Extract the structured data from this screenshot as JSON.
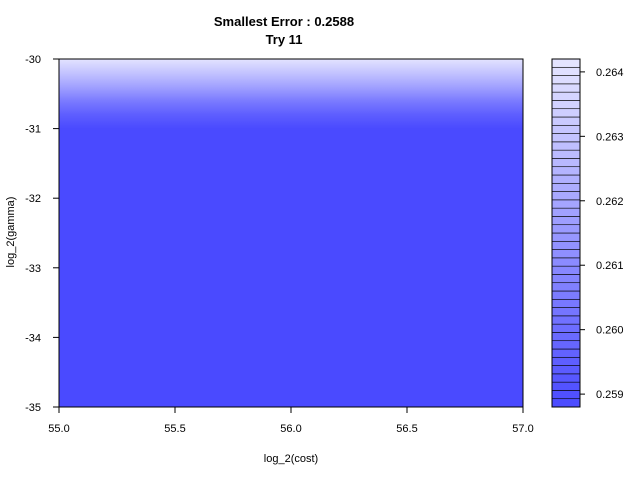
{
  "chart_data": {
    "type": "heatmap",
    "title": "Smallest Error : 0.2588",
    "subtitle": "Try 11",
    "xlabel": "log_2(cost)",
    "ylabel": "log_2(gamma)",
    "xlim": [
      55.0,
      57.0
    ],
    "ylim": [
      -35,
      -30
    ],
    "x_ticks": [
      "55.0",
      "55.5",
      "56.0",
      "56.5",
      "57.0"
    ],
    "x_tick_values": [
      55.0,
      55.5,
      56.0,
      56.5,
      57.0
    ],
    "y_ticks": [
      "-30",
      "-31",
      "-32",
      "-33",
      "-34",
      "-35"
    ],
    "y_tick_values": [
      -30,
      -31,
      -32,
      -33,
      -34,
      -35
    ],
    "fill_gradient": [
      {
        "gamma": -30.0,
        "error": 0.2641
      },
      {
        "gamma": -30.2,
        "error": 0.263
      },
      {
        "gamma": -30.4,
        "error": 0.2618
      },
      {
        "gamma": -30.6,
        "error": 0.2605
      },
      {
        "gamma": -30.8,
        "error": 0.2595
      },
      {
        "gamma": -31.0,
        "error": 0.2588
      },
      {
        "gamma": -35.0,
        "error": 0.2588
      }
    ],
    "colorbar": {
      "min": 0.2588,
      "max": 0.2642,
      "ticks": [
        "0.259",
        "0.260",
        "0.261",
        "0.262",
        "0.263",
        "0.264"
      ],
      "tick_values": [
        0.259,
        0.26,
        0.261,
        0.262,
        0.263,
        0.264
      ],
      "levels": 42,
      "color_low": "#4a4aff",
      "color_high": "#e6e6ff"
    }
  }
}
